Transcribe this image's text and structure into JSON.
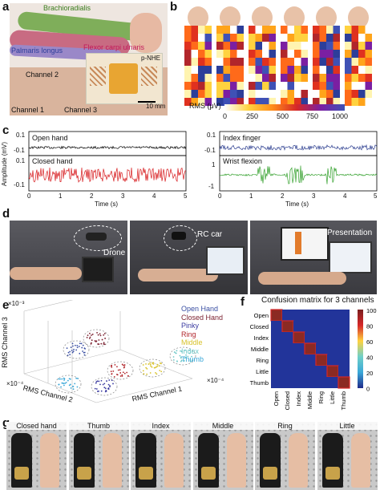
{
  "panels": {
    "a": {
      "label": "a",
      "muscles": [
        "Brachioradialis",
        "Palmaris longus",
        "Flexor carpi ulnaris"
      ],
      "device": "p-NHE",
      "channels": [
        "Channel 2",
        "Channel 1",
        "Channel 3"
      ],
      "scale": "10 mm"
    },
    "b": {
      "label": "b",
      "colorbar_title": "RMS (μV)",
      "colorbar_ticks": [
        "0",
        "250",
        "500",
        "750",
        "1000"
      ]
    },
    "c": {
      "label": "c",
      "ylabel": "Amplitude (mV)",
      "xlabel": "Time (s)",
      "left_traces": [
        "Open hand",
        "Closed hand"
      ],
      "right_traces": [
        "Index finger",
        "Wrist flexion"
      ],
      "xticks": [
        "0",
        "1",
        "2",
        "3",
        "4",
        "5"
      ],
      "left_yticks": [
        "0.1",
        "-0.1",
        "0.1",
        "-0.1"
      ],
      "right_yticks": [
        "0.1",
        "-0.1",
        "1",
        "-1"
      ],
      "colors": {
        "open": "#000000",
        "closed": "#d7191c",
        "index": "#2b3d8f",
        "wrist": "#33a02c"
      }
    },
    "d": {
      "label": "d",
      "captions": [
        "Drone",
        "RC car",
        "Presentation"
      ]
    },
    "e": {
      "label": "e",
      "exponent_top": "×10⁻³",
      "exponent_left": "×10⁻⁴",
      "exponent_right": "×10⁻⁴",
      "zlabel": "RMS Channel 3",
      "xlabel": "RMS Channel 2",
      "ylabel": "RMS Channel 1",
      "legend": [
        {
          "name": "Open Hand",
          "color": "#3a4fa3"
        },
        {
          "name": "Closed Hand",
          "color": "#7a1f2e"
        },
        {
          "name": "Pinky",
          "color": "#3a3aa0"
        },
        {
          "name": "Ring",
          "color": "#b1262b"
        },
        {
          "name": "Middle",
          "color": "#d8c22a"
        },
        {
          "name": "Index",
          "color": "#6fc8c8"
        },
        {
          "name": "Thumb",
          "color": "#3aa7d8"
        }
      ]
    },
    "f": {
      "label": "f",
      "title": "Confusion matrix for 3 channels",
      "classes": [
        "Open",
        "Closed",
        "Index",
        "Middle",
        "Ring",
        "Little",
        "Thumb"
      ],
      "colorbar_ticks": [
        "100",
        "80",
        "60",
        "40",
        "20",
        "0"
      ]
    },
    "g": {
      "label": "g",
      "gestures": [
        "Closed hand",
        "Thumb",
        "Index",
        "Middle",
        "Ring",
        "Little"
      ]
    }
  },
  "chart_data": [
    {
      "type": "heatmap",
      "title": "Confusion matrix for 3 channels",
      "rows": [
        "Open",
        "Closed",
        "Index",
        "Middle",
        "Ring",
        "Little",
        "Thumb"
      ],
      "cols": [
        "Open",
        "Closed",
        "Index",
        "Middle",
        "Ring",
        "Little",
        "Thumb"
      ],
      "values": [
        [
          100,
          0,
          0,
          0,
          0,
          0,
          0
        ],
        [
          0,
          100,
          0,
          0,
          0,
          0,
          0
        ],
        [
          0,
          0,
          100,
          0,
          0,
          0,
          0
        ],
        [
          0,
          0,
          0,
          100,
          0,
          0,
          0
        ],
        [
          0,
          0,
          0,
          0,
          100,
          0,
          0
        ],
        [
          0,
          0,
          0,
          0,
          0,
          100,
          0
        ],
        [
          0,
          0,
          0,
          0,
          0,
          0,
          100
        ]
      ],
      "zlim": [
        0,
        100
      ]
    },
    {
      "type": "line",
      "xlabel": "Time (s)",
      "ylabel": "Amplitude (mV)",
      "xlim": [
        0,
        5
      ],
      "series": [
        {
          "name": "Open hand",
          "amplitude": 0.01
        },
        {
          "name": "Closed hand",
          "amplitude": 0.1
        },
        {
          "name": "Index finger",
          "amplitude": 0.03
        },
        {
          "name": "Wrist flexion",
          "amplitude": 0.6
        }
      ]
    }
  ]
}
